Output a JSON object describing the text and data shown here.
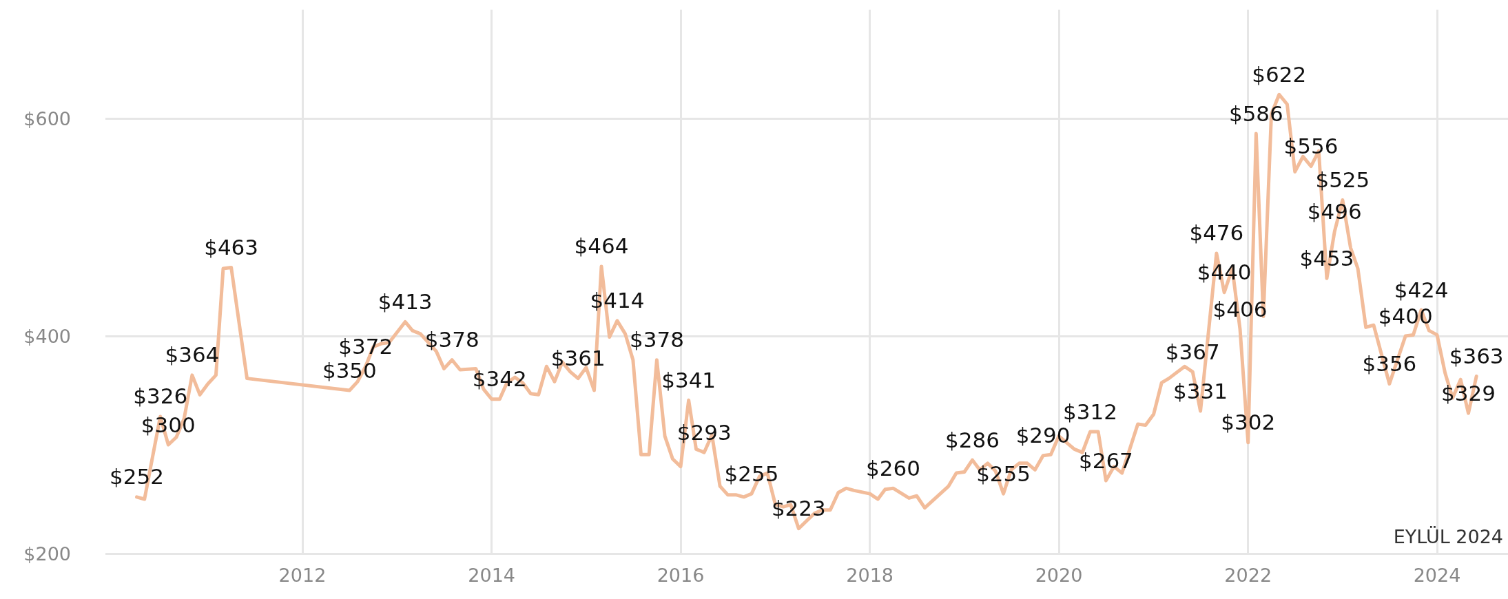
{
  "chart_data": {
    "type": "line",
    "x": [
      "2010-04",
      "2010-05",
      "2010-07",
      "2010-08",
      "2010-09",
      "2010-10",
      "2010-11",
      "2010-12",
      "2011-01",
      "2011-02",
      "2011-03",
      "2011-04",
      "2011-06",
      "2012-07",
      "2012-08",
      "2012-09",
      "2012-10",
      "2012-11",
      "2012-12",
      "2013-02",
      "2013-03",
      "2013-04",
      "2013-06",
      "2013-07",
      "2013-08",
      "2013-09",
      "2013-11",
      "2013-12",
      "2014-01",
      "2014-02",
      "2014-03",
      "2014-04",
      "2014-05",
      "2014-06",
      "2014-07",
      "2014-08",
      "2014-09",
      "2014-10",
      "2014-11",
      "2014-12",
      "2015-01",
      "2015-02",
      "2015-03",
      "2015-04",
      "2015-05",
      "2015-06",
      "2015-07",
      "2015-08",
      "2015-09",
      "2015-10",
      "2015-11",
      "2015-12",
      "2016-01",
      "2016-02",
      "2016-03",
      "2016-04",
      "2016-05",
      "2016-06",
      "2016-07",
      "2016-08",
      "2016-09",
      "2016-10",
      "2016-11",
      "2016-12",
      "2017-01",
      "2017-02",
      "2017-03",
      "2017-04",
      "2017-06",
      "2017-07",
      "2017-08",
      "2017-09",
      "2017-10",
      "2017-11",
      "2018-01",
      "2018-02",
      "2018-03",
      "2018-04",
      "2018-06",
      "2018-07",
      "2018-08",
      "2018-11",
      "2018-12",
      "2019-01",
      "2019-02",
      "2019-03",
      "2019-04",
      "2019-05",
      "2019-06",
      "2019-07",
      "2019-08",
      "2019-09",
      "2019-10",
      "2019-11",
      "2019-12",
      "2020-01",
      "2020-03",
      "2020-04",
      "2020-05",
      "2020-06",
      "2020-07",
      "2020-08",
      "2020-09",
      "2020-11",
      "2020-12",
      "2021-01",
      "2021-02",
      "2021-03",
      "2021-05",
      "2021-06",
      "2021-07",
      "2021-09",
      "2021-10",
      "2021-11",
      "2021-12",
      "2022-01",
      "2022-02",
      "2022-03",
      "2022-04",
      "2022-05",
      "2022-06",
      "2022-07",
      "2022-08",
      "2022-09",
      "2022-10",
      "2022-11",
      "2022-12",
      "2023-01",
      "2023-02",
      "2023-03",
      "2023-04",
      "2023-05",
      "2023-07",
      "2023-09",
      "2023-10",
      "2023-11",
      "2023-12",
      "2024-01",
      "2024-02",
      "2024-03",
      "2024-04",
      "2024-05",
      "2024-06"
    ],
    "series": [
      {
        "color": "#f2bc9a",
        "values": [
          252,
          250,
          326,
          300,
          307,
          324,
          364,
          346,
          356,
          364,
          462,
          463,
          361,
          350,
          358,
          372,
          390,
          393,
          394,
          413,
          405,
          402,
          386,
          370,
          378,
          369,
          370,
          351,
          342,
          342,
          357,
          362,
          357,
          347,
          346,
          372,
          358,
          376,
          367,
          361,
          371,
          350,
          464,
          399,
          414,
          402,
          378,
          291,
          291,
          378,
          308,
          287,
          280,
          341,
          296,
          293,
          309,
          262,
          254,
          254,
          252,
          255,
          271,
          274,
          245,
          243,
          245,
          223,
          237,
          240,
          240,
          256,
          260,
          258,
          255,
          250,
          259,
          260,
          251,
          253,
          242,
          262,
          274,
          275,
          286,
          277,
          283,
          276,
          255,
          277,
          283,
          283,
          277,
          290,
          291,
          308,
          296,
          293,
          312,
          312,
          267,
          280,
          274,
          319,
          318,
          328,
          357,
          361,
          372,
          367,
          331,
          476,
          440,
          462,
          406,
          302,
          586,
          418,
          604,
          622,
          613,
          551,
          565,
          556,
          570,
          453,
          496,
          525,
          481,
          462,
          408,
          410,
          356,
          400,
          401,
          424,
          405,
          401,
          366,
          343,
          360,
          329,
          363
        ],
        "value_labels": [
          "$252",
          null,
          "$326",
          "$300",
          null,
          null,
          "$364",
          null,
          null,
          null,
          null,
          "$463",
          null,
          "$350",
          null,
          "$372",
          null,
          null,
          null,
          "$413",
          null,
          null,
          null,
          null,
          "$378",
          null,
          null,
          null,
          null,
          "$342",
          null,
          null,
          null,
          null,
          null,
          null,
          null,
          null,
          null,
          "$361",
          null,
          null,
          "$464",
          null,
          "$414",
          null,
          null,
          null,
          null,
          "$378",
          null,
          null,
          null,
          "$341",
          null,
          "$293",
          null,
          null,
          null,
          null,
          null,
          "$255",
          null,
          null,
          null,
          null,
          null,
          "$223",
          null,
          null,
          null,
          null,
          null,
          null,
          null,
          null,
          null,
          "$260",
          null,
          null,
          null,
          null,
          null,
          null,
          "$286",
          null,
          null,
          null,
          "$255",
          null,
          null,
          null,
          null,
          "$290",
          null,
          null,
          null,
          null,
          "$312",
          null,
          "$267",
          null,
          null,
          null,
          null,
          null,
          null,
          null,
          null,
          "$367",
          "$331",
          "$476",
          "$440",
          null,
          "$406",
          "$302",
          "$586",
          null,
          null,
          "$622",
          null,
          null,
          null,
          "$556",
          null,
          "$453",
          "$496",
          "$525",
          null,
          null,
          null,
          null,
          "$356",
          "$400",
          null,
          "$424",
          null,
          null,
          null,
          null,
          null,
          "$329",
          "$363"
        ]
      }
    ],
    "xlim": [
      "2009-12",
      "2024-10"
    ],
    "xticks": [
      "2012",
      "2014",
      "2016",
      "2018",
      "2020",
      "2022",
      "2024"
    ],
    "ylim": [
      200,
      700
    ],
    "yticks": [
      {
        "value": 200,
        "label": "$200"
      },
      {
        "value": 400,
        "label": "$400"
      },
      {
        "value": 600,
        "label": "$600"
      }
    ],
    "grid": true,
    "marker": "none",
    "annotations": [
      "EYLÜL 2024"
    ]
  }
}
